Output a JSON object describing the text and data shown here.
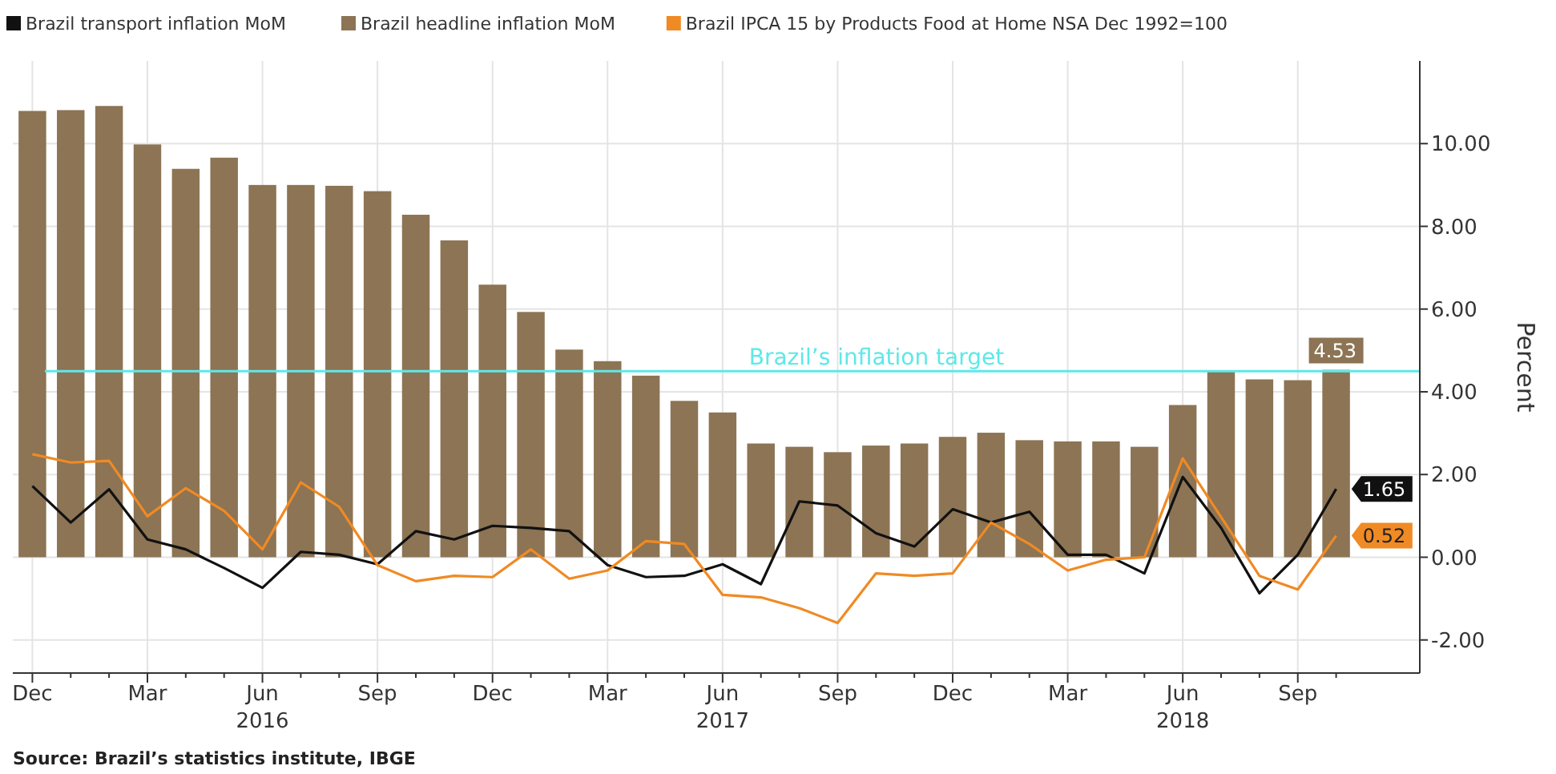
{
  "chart_data": {
    "type": "bar",
    "categories": [
      "Dec",
      null,
      null,
      "Mar",
      null,
      null,
      "Jun\n2016",
      null,
      null,
      "Sep",
      null,
      null,
      "Dec",
      null,
      null,
      "Mar",
      null,
      null,
      "Jun\n2017",
      null,
      null,
      "Sep",
      null,
      null,
      "Dec",
      null,
      null,
      "Mar",
      null,
      null,
      "Jun\n2018",
      null,
      null,
      "Sep",
      null
    ],
    "series": [
      {
        "name": "Brazil transport inflation MoM",
        "type": "line",
        "color": "#111111",
        "values": [
          1.72,
          0.84,
          1.64,
          0.43,
          0.19,
          -0.26,
          -0.74,
          0.13,
          0.06,
          -0.17,
          0.63,
          0.43,
          0.76,
          0.71,
          0.63,
          -0.19,
          -0.48,
          -0.45,
          -0.17,
          -0.65,
          1.35,
          1.25,
          0.58,
          0.26,
          1.16,
          0.84,
          1.1,
          0.06,
          0.06,
          -0.39,
          1.94,
          0.71,
          -0.87,
          0.06,
          1.65
        ],
        "value_labels": [
          null,
          null,
          null,
          null,
          null,
          null,
          null,
          null,
          null,
          null,
          null,
          null,
          null,
          null,
          null,
          null,
          null,
          null,
          null,
          null,
          null,
          null,
          null,
          null,
          null,
          null,
          null,
          null,
          null,
          null,
          null,
          null,
          null,
          null,
          "1.65"
        ]
      },
      {
        "name": "Brazil headline inflation MoM",
        "color": "#8c7454",
        "values": [
          10.79,
          10.81,
          10.91,
          9.98,
          9.39,
          9.66,
          9.0,
          9.0,
          8.98,
          8.85,
          8.28,
          7.66,
          6.59,
          5.93,
          5.02,
          4.74,
          4.39,
          3.78,
          3.5,
          2.75,
          2.67,
          2.54,
          2.7,
          2.75,
          2.91,
          3.01,
          2.83,
          2.8,
          2.8,
          2.67,
          3.68,
          4.51,
          4.3,
          4.28,
          4.53
        ],
        "value_labels": [
          null,
          null,
          null,
          null,
          null,
          null,
          null,
          null,
          null,
          null,
          null,
          null,
          null,
          null,
          null,
          null,
          null,
          null,
          null,
          null,
          null,
          null,
          null,
          null,
          null,
          null,
          null,
          null,
          null,
          null,
          null,
          null,
          null,
          null,
          "4.53"
        ]
      },
      {
        "name": "Brazil IPCA 15 by Products Food at Home NSA Dec 1992=100",
        "type": "line",
        "color": "#f08a24",
        "values": [
          2.49,
          2.29,
          2.33,
          0.99,
          1.67,
          1.12,
          0.19,
          1.81,
          1.22,
          -0.19,
          -0.58,
          -0.45,
          -0.48,
          0.19,
          -0.52,
          -0.32,
          0.39,
          0.32,
          -0.91,
          -0.97,
          -1.23,
          -1.59,
          -0.39,
          -0.45,
          -0.39,
          0.84,
          0.32,
          -0.32,
          -0.06,
          0.0,
          2.39,
          0.97,
          -0.45,
          -0.78,
          0.52
        ],
        "value_labels": [
          null,
          null,
          null,
          null,
          null,
          null,
          null,
          null,
          null,
          null,
          null,
          null,
          null,
          null,
          null,
          null,
          null,
          null,
          null,
          null,
          null,
          null,
          null,
          null,
          null,
          null,
          null,
          null,
          null,
          null,
          null,
          null,
          null,
          null,
          "0.52"
        ]
      }
    ],
    "ylabel": "Percent",
    "ylim": [
      -2.8,
      12
    ],
    "yticks": [
      {
        "value": 10,
        "label": "10.00"
      },
      {
        "value": 8,
        "label": "8.00"
      },
      {
        "value": 6,
        "label": "6.00"
      },
      {
        "value": 4,
        "label": "4.00"
      },
      {
        "value": 2,
        "label": "2.00"
      },
      {
        "value": 0,
        "label": "0.00"
      },
      {
        "value": -2,
        "label": "-2.00"
      }
    ],
    "ref_lines": [
      {
        "axis": "y",
        "value": 4.5,
        "label": "Brazil’s inflation target",
        "color": "#5ee8e8"
      }
    ],
    "annotations": [
      "Source: Brazil’s statistics institute, IBGE"
    ],
    "grid": true,
    "legend": "top"
  }
}
